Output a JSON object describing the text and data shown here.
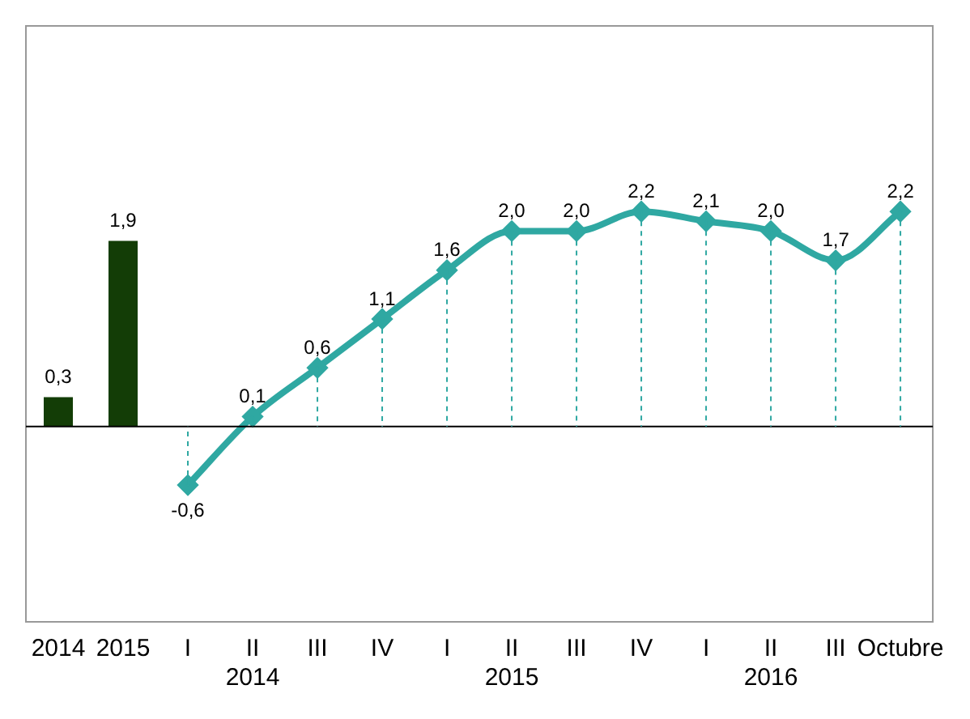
{
  "chart_data": {
    "type": "bar",
    "categories": [
      "2014",
      "2015",
      "I",
      "II\n2014",
      "III",
      "IV",
      "I",
      "II\n2015",
      "III",
      "IV",
      "I",
      "II\n2016",
      "III",
      "Octubre"
    ],
    "series": [
      {
        "color": "#133d06",
        "values": [
          0.3,
          1.9,
          null,
          null,
          null,
          null,
          null,
          null,
          null,
          null,
          null,
          null,
          null,
          null
        ],
        "value_labels": [
          "0,3",
          "1,9",
          null,
          null,
          null,
          null,
          null,
          null,
          null,
          null,
          null,
          null,
          null,
          null
        ]
      },
      {
        "type": "line",
        "color": "#2fa8a2",
        "marker": "diamond",
        "line_style": "solid",
        "values": [
          null,
          null,
          -0.6,
          0.1,
          0.6,
          1.1,
          1.6,
          2.0,
          2.0,
          2.2,
          2.1,
          2.0,
          1.7,
          2.2
        ],
        "value_labels": [
          null,
          null,
          "-0,6",
          "0,1",
          "0,6",
          "1,1",
          "1,6",
          "2,0",
          "2,0",
          "2,2",
          "2,1",
          "2,0",
          "1,7",
          "2,2"
        ]
      }
    ],
    "ylim": [
      -2.0,
      4.1
    ],
    "grid": false,
    "legend": false,
    "tick_labels": "x"
  }
}
